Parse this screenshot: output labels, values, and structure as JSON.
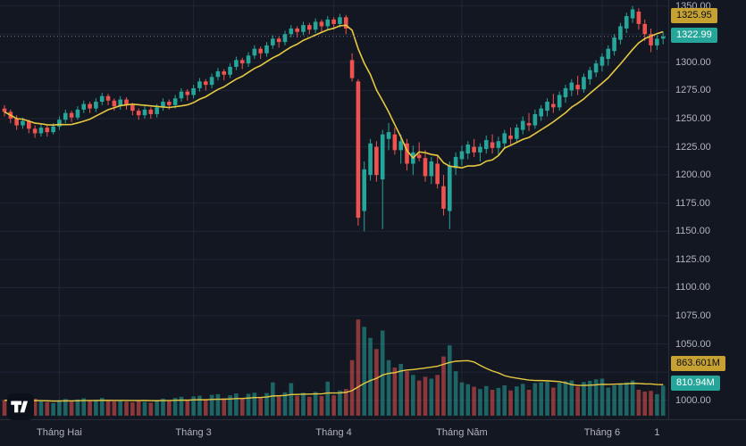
{
  "colors": {
    "background": "#131722",
    "grid": "#202637",
    "up": "#26a69a",
    "down": "#ef5350",
    "vol_up": "rgba(38,166,154,0.55)",
    "vol_down": "rgba(239,83,80,0.55)",
    "ma": "#e6c840",
    "dotted": "#787b86",
    "axis_text": "#b2b5be",
    "badge_yellow": "#c7a233",
    "badge_green": "#26a69a"
  },
  "chart_data": {
    "type": "candlestick+volume",
    "ylim": [
      1000,
      1350
    ],
    "grid_step": 25,
    "last_price_label": "1322.99",
    "last_volume_label": "810.94M",
    "ma": {
      "period": 10,
      "last_label": "1325.95"
    },
    "volume_ma": {
      "period": 20,
      "last_label": "863.601M"
    },
    "price_ticks": [
      {
        "label": "1350.00",
        "value": 1350
      },
      {
        "label": "1300.00",
        "value": 1300
      },
      {
        "label": "1275.00",
        "value": 1275
      },
      {
        "label": "1250.00",
        "value": 1250
      },
      {
        "label": "1225.00",
        "value": 1225
      },
      {
        "label": "1200.00",
        "value": 1200
      },
      {
        "label": "1175.00",
        "value": 1175
      },
      {
        "label": "1150.00",
        "value": 1150
      },
      {
        "label": "1125.00",
        "value": 1125
      },
      {
        "label": "1100.00",
        "value": 1100
      },
      {
        "label": "1075.00",
        "value": 1075
      },
      {
        "label": "1050.00",
        "value": 1050
      },
      {
        "label": "1000.00",
        "value": 1000
      }
    ],
    "time_ticks": [
      {
        "label": "Tháng Hai",
        "index": 9
      },
      {
        "label": "Tháng 3",
        "index": 31
      },
      {
        "label": "Tháng 4",
        "index": 54
      },
      {
        "label": "Tháng Năm",
        "index": 75
      },
      {
        "label": "Tháng 6",
        "index": 98
      },
      {
        "label": "1",
        "index": 107
      }
    ],
    "candles": [
      [
        1259,
        1262,
        1252,
        1256,
        420
      ],
      [
        1256,
        1258,
        1246,
        1250,
        380
      ],
      [
        1250,
        1253,
        1240,
        1244,
        410
      ],
      [
        1244,
        1251,
        1241,
        1248,
        350
      ],
      [
        1248,
        1249,
        1237,
        1241,
        430
      ],
      [
        1241,
        1244,
        1233,
        1237,
        460
      ],
      [
        1237,
        1245,
        1234,
        1242,
        390
      ],
      [
        1242,
        1244,
        1234,
        1238,
        370
      ],
      [
        1238,
        1246,
        1236,
        1243,
        340
      ],
      [
        1243,
        1252,
        1240,
        1249,
        420
      ],
      [
        1249,
        1258,
        1246,
        1255,
        450
      ],
      [
        1255,
        1257,
        1247,
        1251,
        380
      ],
      [
        1251,
        1261,
        1249,
        1258,
        440
      ],
      [
        1258,
        1266,
        1255,
        1263,
        470
      ],
      [
        1263,
        1265,
        1255,
        1259,
        400
      ],
      [
        1259,
        1268,
        1256,
        1265,
        430
      ],
      [
        1265,
        1273,
        1262,
        1270,
        480
      ],
      [
        1270,
        1272,
        1262,
        1266,
        410
      ],
      [
        1266,
        1268,
        1257,
        1261,
        390
      ],
      [
        1261,
        1270,
        1258,
        1267,
        420
      ],
      [
        1267,
        1269,
        1258,
        1262,
        380
      ],
      [
        1262,
        1264,
        1253,
        1257,
        360
      ],
      [
        1257,
        1259,
        1249,
        1253,
        400
      ],
      [
        1253,
        1261,
        1250,
        1258,
        370
      ],
      [
        1258,
        1260,
        1250,
        1254,
        350
      ],
      [
        1254,
        1263,
        1251,
        1260,
        420
      ],
      [
        1260,
        1268,
        1257,
        1265,
        460
      ],
      [
        1265,
        1267,
        1258,
        1262,
        390
      ],
      [
        1262,
        1271,
        1259,
        1268,
        480
      ],
      [
        1268,
        1277,
        1265,
        1274,
        510
      ],
      [
        1274,
        1276,
        1266,
        1271,
        430
      ],
      [
        1271,
        1280,
        1268,
        1277,
        520
      ],
      [
        1277,
        1286,
        1274,
        1283,
        540
      ],
      [
        1283,
        1285,
        1275,
        1280,
        450
      ],
      [
        1280,
        1290,
        1277,
        1287,
        560
      ],
      [
        1287,
        1295,
        1284,
        1292,
        580
      ],
      [
        1292,
        1294,
        1284,
        1289,
        470
      ],
      [
        1289,
        1299,
        1286,
        1296,
        550
      ],
      [
        1296,
        1305,
        1293,
        1302,
        600
      ],
      [
        1302,
        1304,
        1294,
        1299,
        480
      ],
      [
        1299,
        1309,
        1296,
        1306,
        590
      ],
      [
        1306,
        1315,
        1303,
        1312,
        620
      ],
      [
        1312,
        1314,
        1303,
        1308,
        500
      ],
      [
        1308,
        1318,
        1305,
        1315,
        610
      ],
      [
        1315,
        1324,
        1312,
        1321,
        900
      ],
      [
        1321,
        1323,
        1313,
        1318,
        520
      ],
      [
        1318,
        1328,
        1315,
        1325,
        630
      ],
      [
        1325,
        1333,
        1322,
        1330,
        880
      ],
      [
        1330,
        1332,
        1322,
        1327,
        540
      ],
      [
        1327,
        1336,
        1324,
        1333,
        620
      ],
      [
        1333,
        1335,
        1325,
        1329,
        510
      ],
      [
        1329,
        1339,
        1326,
        1336,
        640
      ],
      [
        1336,
        1338,
        1327,
        1332,
        530
      ],
      [
        1332,
        1341,
        1329,
        1338,
        920
      ],
      [
        1338,
        1340,
        1329,
        1334,
        550
      ],
      [
        1334,
        1343,
        1331,
        1340,
        680
      ],
      [
        1340,
        1342,
        1325,
        1330,
        720
      ],
      [
        1302,
        1308,
        1283,
        1286,
        1500
      ],
      [
        1283,
        1285,
        1155,
        1162,
        2600
      ],
      [
        1168,
        1212,
        1150,
        1205,
        2400
      ],
      [
        1200,
        1232,
        1195,
        1228,
        2100
      ],
      [
        1225,
        1230,
        1194,
        1200,
        1800
      ],
      [
        1196,
        1240,
        1152,
        1236,
        2300
      ],
      [
        1232,
        1246,
        1222,
        1238,
        1500
      ],
      [
        1236,
        1242,
        1218,
        1222,
        1300
      ],
      [
        1222,
        1236,
        1210,
        1230,
        1400
      ],
      [
        1228,
        1232,
        1204,
        1210,
        1200
      ],
      [
        1210,
        1226,
        1200,
        1220,
        1100
      ],
      [
        1218,
        1229,
        1212,
        1215,
        950
      ],
      [
        1215,
        1222,
        1194,
        1199,
        1050
      ],
      [
        1199,
        1216,
        1192,
        1212,
        1000
      ],
      [
        1210,
        1218,
        1188,
        1192,
        1100
      ],
      [
        1190,
        1200,
        1164,
        1170,
        1600
      ],
      [
        1168,
        1212,
        1152,
        1208,
        1900
      ],
      [
        1206,
        1220,
        1200,
        1216,
        1200
      ],
      [
        1214,
        1226,
        1208,
        1221,
        900
      ],
      [
        1219,
        1230,
        1214,
        1227,
        850
      ],
      [
        1225,
        1232,
        1216,
        1220,
        780
      ],
      [
        1220,
        1228,
        1212,
        1225,
        720
      ],
      [
        1223,
        1235,
        1219,
        1231,
        800
      ],
      [
        1229,
        1236,
        1219,
        1224,
        700
      ],
      [
        1224,
        1234,
        1218,
        1230,
        750
      ],
      [
        1228,
        1240,
        1224,
        1237,
        820
      ],
      [
        1235,
        1242,
        1227,
        1232,
        680
      ],
      [
        1232,
        1245,
        1229,
        1242,
        790
      ],
      [
        1240,
        1252,
        1236,
        1248,
        860
      ],
      [
        1246,
        1255,
        1239,
        1244,
        700
      ],
      [
        1244,
        1258,
        1241,
        1254,
        880
      ],
      [
        1252,
        1262,
        1248,
        1259,
        900
      ],
      [
        1257,
        1268,
        1252,
        1265,
        920
      ],
      [
        1263,
        1272,
        1255,
        1260,
        760
      ],
      [
        1260,
        1274,
        1257,
        1271,
        890
      ],
      [
        1269,
        1280,
        1264,
        1277,
        930
      ],
      [
        1275,
        1285,
        1270,
        1282,
        950
      ],
      [
        1280,
        1288,
        1271,
        1276,
        780
      ],
      [
        1276,
        1290,
        1273,
        1287,
        910
      ],
      [
        1285,
        1296,
        1280,
        1293,
        940
      ],
      [
        1291,
        1302,
        1287,
        1299,
        980
      ],
      [
        1297,
        1308,
        1292,
        1305,
        1000
      ],
      [
        1303,
        1315,
        1297,
        1312,
        760
      ],
      [
        1310,
        1325,
        1306,
        1322,
        820
      ],
      [
        1320,
        1335,
        1316,
        1332,
        850
      ],
      [
        1330,
        1344,
        1326,
        1341,
        900
      ],
      [
        1339,
        1350,
        1335,
        1347,
        950
      ],
      [
        1345,
        1348,
        1329,
        1334,
        700
      ],
      [
        1334,
        1338,
        1319,
        1325,
        650
      ],
      [
        1325,
        1330,
        1309,
        1315,
        670
      ],
      [
        1315,
        1324,
        1311,
        1321,
        580
      ],
      [
        1321,
        1327,
        1316,
        1322.99,
        810.94
      ]
    ]
  }
}
